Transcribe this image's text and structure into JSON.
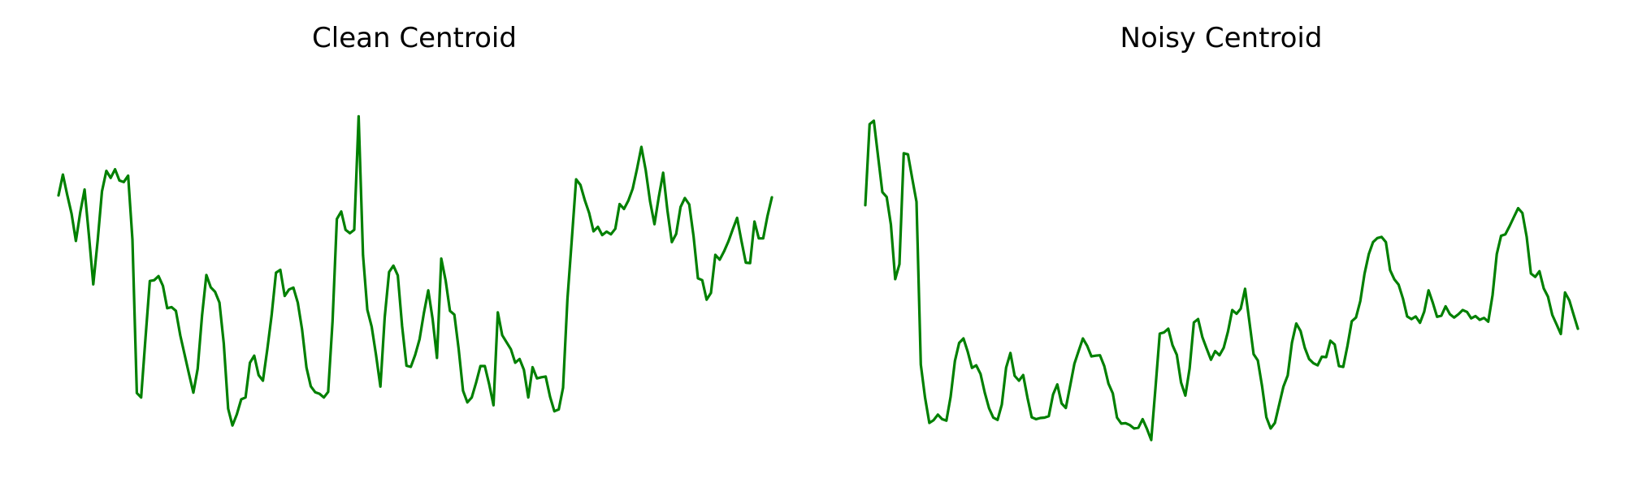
{
  "colors": {
    "line": "#008000",
    "background": "#ffffff"
  },
  "chart_data": [
    {
      "type": "line",
      "title": "Clean Centroid",
      "xlabel": "",
      "ylabel": "",
      "axes": "off",
      "grid": false,
      "ylim": [
        0,
        100
      ],
      "series": [
        {
          "values": [
            68.3,
            73.9,
            68.5,
            63.4,
            56.1,
            63.8,
            69.9,
            57.5,
            44.5,
            56.2,
            69.4,
            74.9,
            73.0,
            75.3,
            72.3,
            71.9,
            73.6,
            56.5,
            15.4,
            14.2,
            30.2,
            45.4,
            45.6,
            46.7,
            44.1,
            38.1,
            38.4,
            37.4,
            30.8,
            25.6,
            20.5,
            15.5,
            21.9,
            36.2,
            47.0,
            43.7,
            42.5,
            39.6,
            28.7,
            11.2,
            6.7,
            9.7,
            13.7,
            14.2,
            23.5,
            25.4,
            20.2,
            18.7,
            27.1,
            36.2,
            47.6,
            48.4,
            41.4,
            43.1,
            43.6,
            39.6,
            32.4,
            22.2,
            17.2,
            15.6,
            15.2,
            14.2,
            15.7,
            34.6,
            62.0,
            64.0,
            59.1,
            58.2,
            59.1,
            89.5,
            52.3,
            37.7,
            33.1,
            25.6,
            17.1,
            35.7,
            47.8,
            49.5,
            46.9,
            33.3,
            22.7,
            22.4,
            25.6,
            29.8,
            36.8,
            42.9,
            35.3,
            24.8,
            51.4,
            45.5,
            37.4,
            36.4,
            27.2,
            16.0,
            12.9,
            14.2,
            18.2,
            22.6,
            22.6,
            17.8,
            12.1,
            37.0,
            30.9,
            29.0,
            27.1,
            23.5,
            24.5,
            21.6,
            14.2,
            22.3,
            19.3,
            19.6,
            19.8,
            14.4,
            10.5,
            11.0,
            16.8,
            40.6,
            56.3,
            72.6,
            71.1,
            67.0,
            63.6,
            58.7,
            59.9,
            57.7,
            58.6,
            57.9,
            59.4,
            66.0,
            64.7,
            66.9,
            70.1,
            75.4,
            81.3,
            75.1,
            66.7,
            60.6,
            67.9,
            74.4,
            64.2,
            55.8,
            58.0,
            65.2,
            67.6,
            65.9,
            57.4,
            46.1,
            45.6,
            40.4,
            42.2,
            52.4,
            51.1,
            53.3,
            56.0,
            59.2,
            62.3,
            56.2,
            50.3,
            50.2,
            61.3,
            56.8,
            56.8,
            62.8,
            67.8
          ]
        }
      ]
    },
    {
      "type": "line",
      "title": "Noisy Centroid",
      "xlabel": "",
      "ylabel": "",
      "axes": "off",
      "grid": false,
      "ylim": [
        0,
        100
      ],
      "series": [
        {
          "values": [
            65.7,
            87.4,
            88.3,
            78.6,
            69.2,
            67.9,
            60.5,
            45.9,
            49.9,
            79.6,
            79.3,
            72.8,
            66.6,
            23.0,
            14.2,
            7.4,
            8.1,
            9.6,
            8.4,
            8.0,
            14.4,
            24.0,
            28.8,
            30.0,
            26.5,
            22.1,
            22.8,
            20.5,
            15.5,
            11.3,
            8.8,
            8.2,
            12.3,
            22.2,
            26.1,
            20.0,
            18.7,
            20.2,
            14.1,
            8.9,
            8.4,
            8.7,
            8.8,
            9.2,
            15.0,
            17.7,
            12.6,
            11.4,
            17.3,
            23.2,
            26.7,
            30.0,
            28.0,
            25.2,
            25.4,
            25.5,
            22.6,
            17.9,
            15.3,
            8.8,
            7.2,
            7.3,
            6.8,
            5.9,
            6.1,
            8.4,
            5.8,
            2.8,
            16.7,
            31.3,
            31.6,
            32.6,
            28.2,
            25.6,
            18.2,
            14.7,
            21.9,
            34.3,
            35.2,
            30.3,
            27.3,
            24.3,
            26.6,
            25.5,
            27.5,
            31.9,
            37.6,
            36.6,
            38.0,
            43.3,
            34.7,
            25.8,
            24.1,
            17.1,
            8.9,
            5.9,
            7.4,
            12.3,
            17.1,
            20.1,
            28.9,
            34.0,
            32.0,
            27.5,
            24.5,
            23.4,
            22.8,
            25.1,
            25.0,
            29.4,
            28.4,
            22.6,
            22.4,
            28.0,
            34.6,
            35.6,
            40.0,
            47.3,
            52.6,
            55.8,
            56.9,
            57.2,
            55.8,
            48.3,
            45.8,
            44.4,
            40.7,
            35.9,
            35.2,
            35.9,
            34.2,
            37.2,
            42.9,
            39.6,
            35.8,
            36.1,
            38.6,
            36.5,
            35.6,
            36.5,
            37.6,
            37.1,
            35.4,
            36.0,
            35.0,
            35.5,
            34.5,
            41.6,
            52.6,
            57.5,
            57.9,
            60.1,
            62.5,
            64.9,
            63.6,
            57.2,
            47.4,
            46.5,
            48.0,
            43.4,
            41.2,
            36.3,
            33.8,
            31.2,
            42.3,
            40.2,
            36.4,
            32.6
          ]
        }
      ]
    }
  ]
}
